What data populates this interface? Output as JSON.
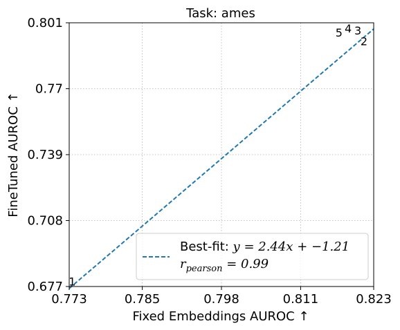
{
  "chart_data": {
    "type": "scatter",
    "title": "Task: ames",
    "xlabel": "Fixed Embeddings AUROC ↑",
    "ylabel": "FineTuned AUROC ↑",
    "xlim": [
      0.773,
      0.823
    ],
    "ylim": [
      0.677,
      0.801
    ],
    "x_ticks": [
      "0.773",
      "0.785",
      "0.798",
      "0.811",
      "0.823"
    ],
    "y_ticks": [
      "0.677",
      "0.708",
      "0.739",
      "0.77",
      "0.801"
    ],
    "grid": true,
    "points": [
      {
        "label": "1",
        "x": 0.7735,
        "y": 0.6775
      },
      {
        "label": "2",
        "x": 0.8214,
        "y": 0.7905
      },
      {
        "label": "3",
        "x": 0.8204,
        "y": 0.7955
      },
      {
        "label": "4",
        "x": 0.8188,
        "y": 0.7965
      },
      {
        "label": "5",
        "x": 0.8173,
        "y": 0.7945
      }
    ],
    "fit_line": {
      "slope": 2.44,
      "intercept": -1.21,
      "color": "#1f77b4",
      "style": "dashed"
    },
    "legend": {
      "placement": "lower-right",
      "line1_prefix": "Best-fit: ",
      "line1_math": "y = 2.44x + −1.21",
      "line2_r": "r",
      "line2_sub": "pearson",
      "line2_rest": " = 0.99"
    }
  }
}
